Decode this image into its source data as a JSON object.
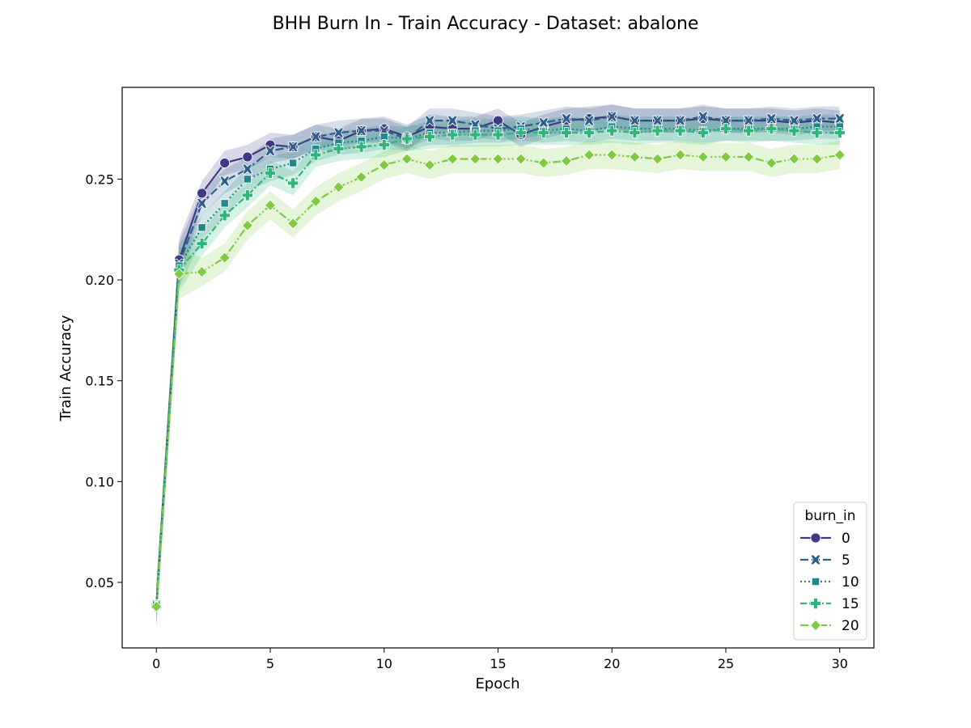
{
  "chart_data": {
    "type": "line",
    "title": "BHH Burn In - Train Accuracy - Dataset: abalone",
    "xlabel": "Epoch",
    "ylabel": "Train Accuracy",
    "xlim": [
      -1.5,
      31.5
    ],
    "ylim": [
      0.0175,
      0.2955
    ],
    "xticks": [
      0,
      5,
      10,
      15,
      20,
      25,
      30
    ],
    "yticks": [
      0.05,
      0.1,
      0.15,
      0.2,
      0.25
    ],
    "ytick_labels": [
      "0.05",
      "0.10",
      "0.15",
      "0.20",
      "0.25"
    ],
    "grid": false,
    "legend": {
      "title": "burn_in",
      "position": "lower right"
    },
    "x": [
      0,
      1,
      2,
      3,
      4,
      5,
      6,
      7,
      8,
      9,
      10,
      11,
      12,
      13,
      14,
      15,
      16,
      17,
      18,
      19,
      20,
      21,
      22,
      23,
      24,
      25,
      26,
      27,
      28,
      29,
      30
    ],
    "series": [
      {
        "name": "0",
        "color": "#3e3a85",
        "dash": "solid",
        "marker": "circle",
        "values": [
          0.039,
          0.21,
          0.243,
          0.258,
          0.261,
          0.267,
          0.266,
          0.271,
          0.269,
          0.274,
          0.275,
          0.271,
          0.276,
          0.275,
          0.275,
          0.279,
          0.272,
          0.276,
          0.279,
          0.28,
          0.281,
          0.279,
          0.279,
          0.279,
          0.28,
          0.279,
          0.279,
          0.279,
          0.278,
          0.279,
          0.278
        ],
        "band": 0.006
      },
      {
        "name": "5",
        "color": "#2e5f8a",
        "dash": "dashed",
        "marker": "x",
        "values": [
          0.039,
          0.208,
          0.238,
          0.249,
          0.255,
          0.264,
          0.266,
          0.271,
          0.273,
          0.274,
          0.274,
          0.27,
          0.279,
          0.279,
          0.277,
          0.275,
          0.276,
          0.278,
          0.28,
          0.279,
          0.281,
          0.279,
          0.279,
          0.279,
          0.281,
          0.279,
          0.279,
          0.28,
          0.279,
          0.28,
          0.28
        ],
        "band": 0.006
      },
      {
        "name": "10",
        "color": "#20878a",
        "dash": "dotted",
        "marker": "square",
        "values": [
          0.039,
          0.207,
          0.226,
          0.238,
          0.25,
          0.255,
          0.258,
          0.265,
          0.268,
          0.269,
          0.271,
          0.27,
          0.273,
          0.273,
          0.274,
          0.274,
          0.275,
          0.274,
          0.275,
          0.274,
          0.276,
          0.275,
          0.275,
          0.275,
          0.274,
          0.275,
          0.275,
          0.275,
          0.275,
          0.276,
          0.276
        ],
        "band": 0.006
      },
      {
        "name": "15",
        "color": "#2fb47a",
        "dash": "dashdot",
        "marker": "plus",
        "values": [
          0.038,
          0.205,
          0.218,
          0.232,
          0.242,
          0.253,
          0.248,
          0.262,
          0.265,
          0.266,
          0.267,
          0.27,
          0.271,
          0.272,
          0.272,
          0.272,
          0.273,
          0.273,
          0.273,
          0.273,
          0.274,
          0.273,
          0.274,
          0.274,
          0.273,
          0.275,
          0.274,
          0.275,
          0.274,
          0.273,
          0.273
        ],
        "band": 0.006
      },
      {
        "name": "20",
        "color": "#7ecb40",
        "dash": "dashdotdot",
        "marker": "diamond",
        "values": [
          0.038,
          0.203,
          0.204,
          0.211,
          0.227,
          0.237,
          0.228,
          0.239,
          0.246,
          0.251,
          0.257,
          0.26,
          0.257,
          0.26,
          0.26,
          0.26,
          0.26,
          0.258,
          0.259,
          0.262,
          0.262,
          0.261,
          0.26,
          0.262,
          0.261,
          0.261,
          0.261,
          0.258,
          0.26,
          0.26,
          0.262
        ],
        "band": 0.007
      }
    ]
  }
}
